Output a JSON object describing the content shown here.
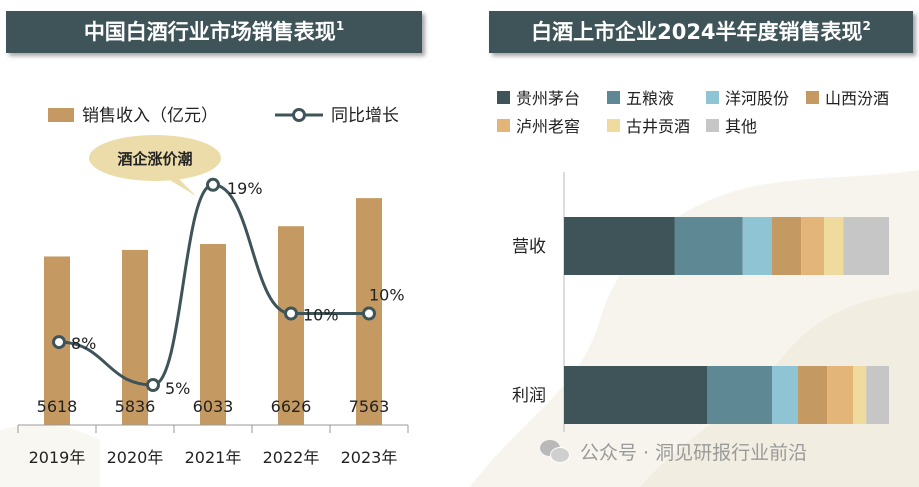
{
  "left_title": "中国白酒行业市场销售表现",
  "left_title_sup": "1",
  "right_title": "白酒上市企业2024半年度销售表现",
  "right_title_sup": "2",
  "annotation": "酒企涨价潮",
  "watermark": "公众号 · 洞见研报行业前沿",
  "colors": {
    "title_bg": "#3f5459",
    "bar": "#c49a62",
    "line": "#3f5459",
    "bubble": "#ebdcaa"
  },
  "chart_data": [
    {
      "type": "bar",
      "categories": [
        "2019年",
        "2020年",
        "2021年",
        "2022年",
        "2023年"
      ],
      "series": [
        {
          "name": "销售收入（亿元）",
          "type": "bar",
          "values": [
            5618,
            5836,
            6033,
            6626,
            7563
          ],
          "labels": [
            "5618",
            "5836",
            "6033",
            "6626",
            "7563"
          ]
        },
        {
          "name": "同比增长",
          "type": "line",
          "values": [
            8,
            5,
            19,
            10,
            10
          ],
          "labels": [
            "8%",
            "5%",
            "19%",
            "10%",
            "10%"
          ]
        }
      ],
      "ylim": [
        0,
        8500
      ],
      "legend": "top"
    },
    {
      "type": "bar",
      "stacked": true,
      "orientation": "horizontal",
      "categories": [
        "营收",
        "利润"
      ],
      "series": [
        {
          "name": "贵州茅台",
          "color": "#3f5459",
          "values": [
            34,
            44
          ]
        },
        {
          "name": "五粮液",
          "color": "#5e8894",
          "values": [
            21,
            20
          ]
        },
        {
          "name": "洋河股份",
          "color": "#8fc4d4",
          "values": [
            9,
            8
          ]
        },
        {
          "name": "山西汾酒",
          "color": "#c49a62",
          "values": [
            9,
            9
          ]
        },
        {
          "name": "泸州老窖",
          "color": "#e3b578",
          "values": [
            7,
            8
          ]
        },
        {
          "name": "古井贡酒",
          "color": "#efdb9e",
          "values": [
            6,
            4
          ]
        },
        {
          "name": "其他",
          "color": "#c6c6c6",
          "values": [
            14,
            7
          ]
        }
      ],
      "legend": "top"
    }
  ]
}
